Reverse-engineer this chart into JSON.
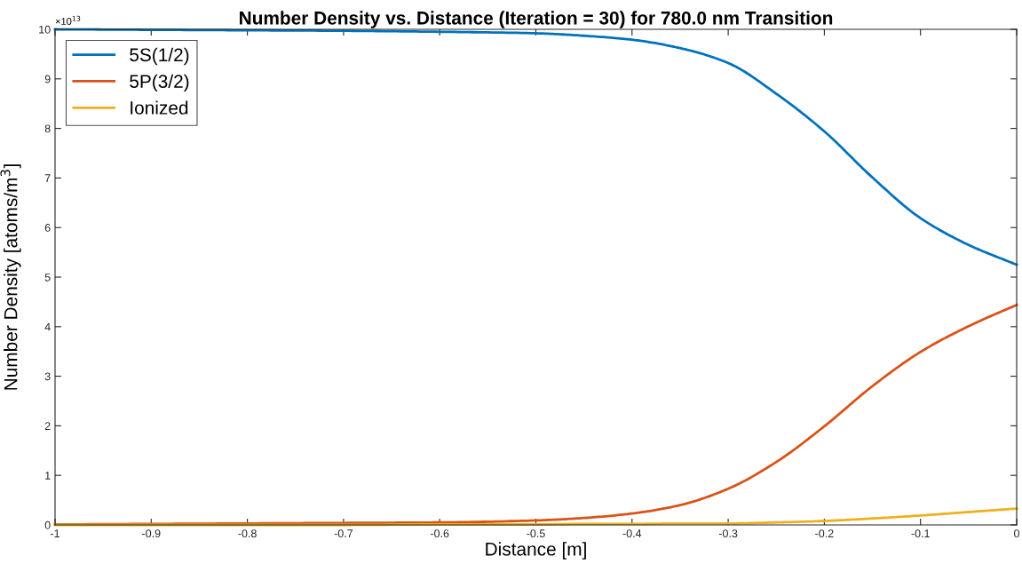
{
  "chart_data": {
    "type": "line",
    "title": "Number Density vs. Distance (Iteration = 30) for 780.0 nm Transition",
    "xlabel": "Distance [m]",
    "ylabel": "Number Density [atoms/m$^{3}$]",
    "annotations": [
      "×10$^{13}$"
    ],
    "xlim": [
      -1,
      0
    ],
    "xticks": [
      -1,
      {
        "value": -0.9,
        "label": "-0.9"
      },
      {
        "value": -0.8,
        "label": "-0.8"
      },
      {
        "value": -0.7,
        "label": "-0.7"
      },
      {
        "value": -0.6,
        "label": "-0.6"
      },
      {
        "value": -0.5,
        "label": "-0.5"
      },
      {
        "value": -0.4,
        "label": "-0.4"
      },
      {
        "value": -0.3,
        "label": "-0.3"
      },
      {
        "value": -0.2,
        "label": "-0.2"
      },
      {
        "value": -0.1,
        "label": "-0.1"
      },
      0
    ],
    "ylim": [
      0,
      10
    ],
    "yticks": [
      0,
      1,
      2,
      3,
      4,
      5,
      6,
      7,
      8,
      9,
      10
    ],
    "grid": false,
    "legend": "top left",
    "marker": "none",
    "line_style": "solid",
    "x": [
      -1,
      -0.9,
      -0.8,
      -0.7,
      -0.6,
      -0.5,
      -0.45,
      -0.4,
      -0.35,
      -0.3,
      -0.25,
      -0.2,
      -0.15,
      -0.1,
      -0.05,
      0
    ],
    "series": [
      {
        "name": "5S(1/2)",
        "color": "#0072bd",
        "values": [
          10.0,
          9.99,
          9.98,
          9.97,
          9.95,
          9.92,
          9.87,
          9.79,
          9.62,
          9.32,
          8.7,
          7.94,
          7.01,
          6.19,
          5.65,
          5.25
        ]
      },
      {
        "name": "5P(3/2)",
        "color": "#d95319",
        "values": [
          0.01,
          0.02,
          0.03,
          0.04,
          0.05,
          0.09,
          0.14,
          0.23,
          0.4,
          0.73,
          1.27,
          1.99,
          2.8,
          3.49,
          4.01,
          4.44
        ]
      },
      {
        "name": "Ionized",
        "color": "#edb120",
        "values": [
          0.0,
          0.0,
          0.0,
          0.0,
          0.01,
          0.01,
          0.02,
          0.02,
          0.03,
          0.03,
          0.05,
          0.08,
          0.13,
          0.19,
          0.26,
          0.33
        ]
      }
    ]
  }
}
